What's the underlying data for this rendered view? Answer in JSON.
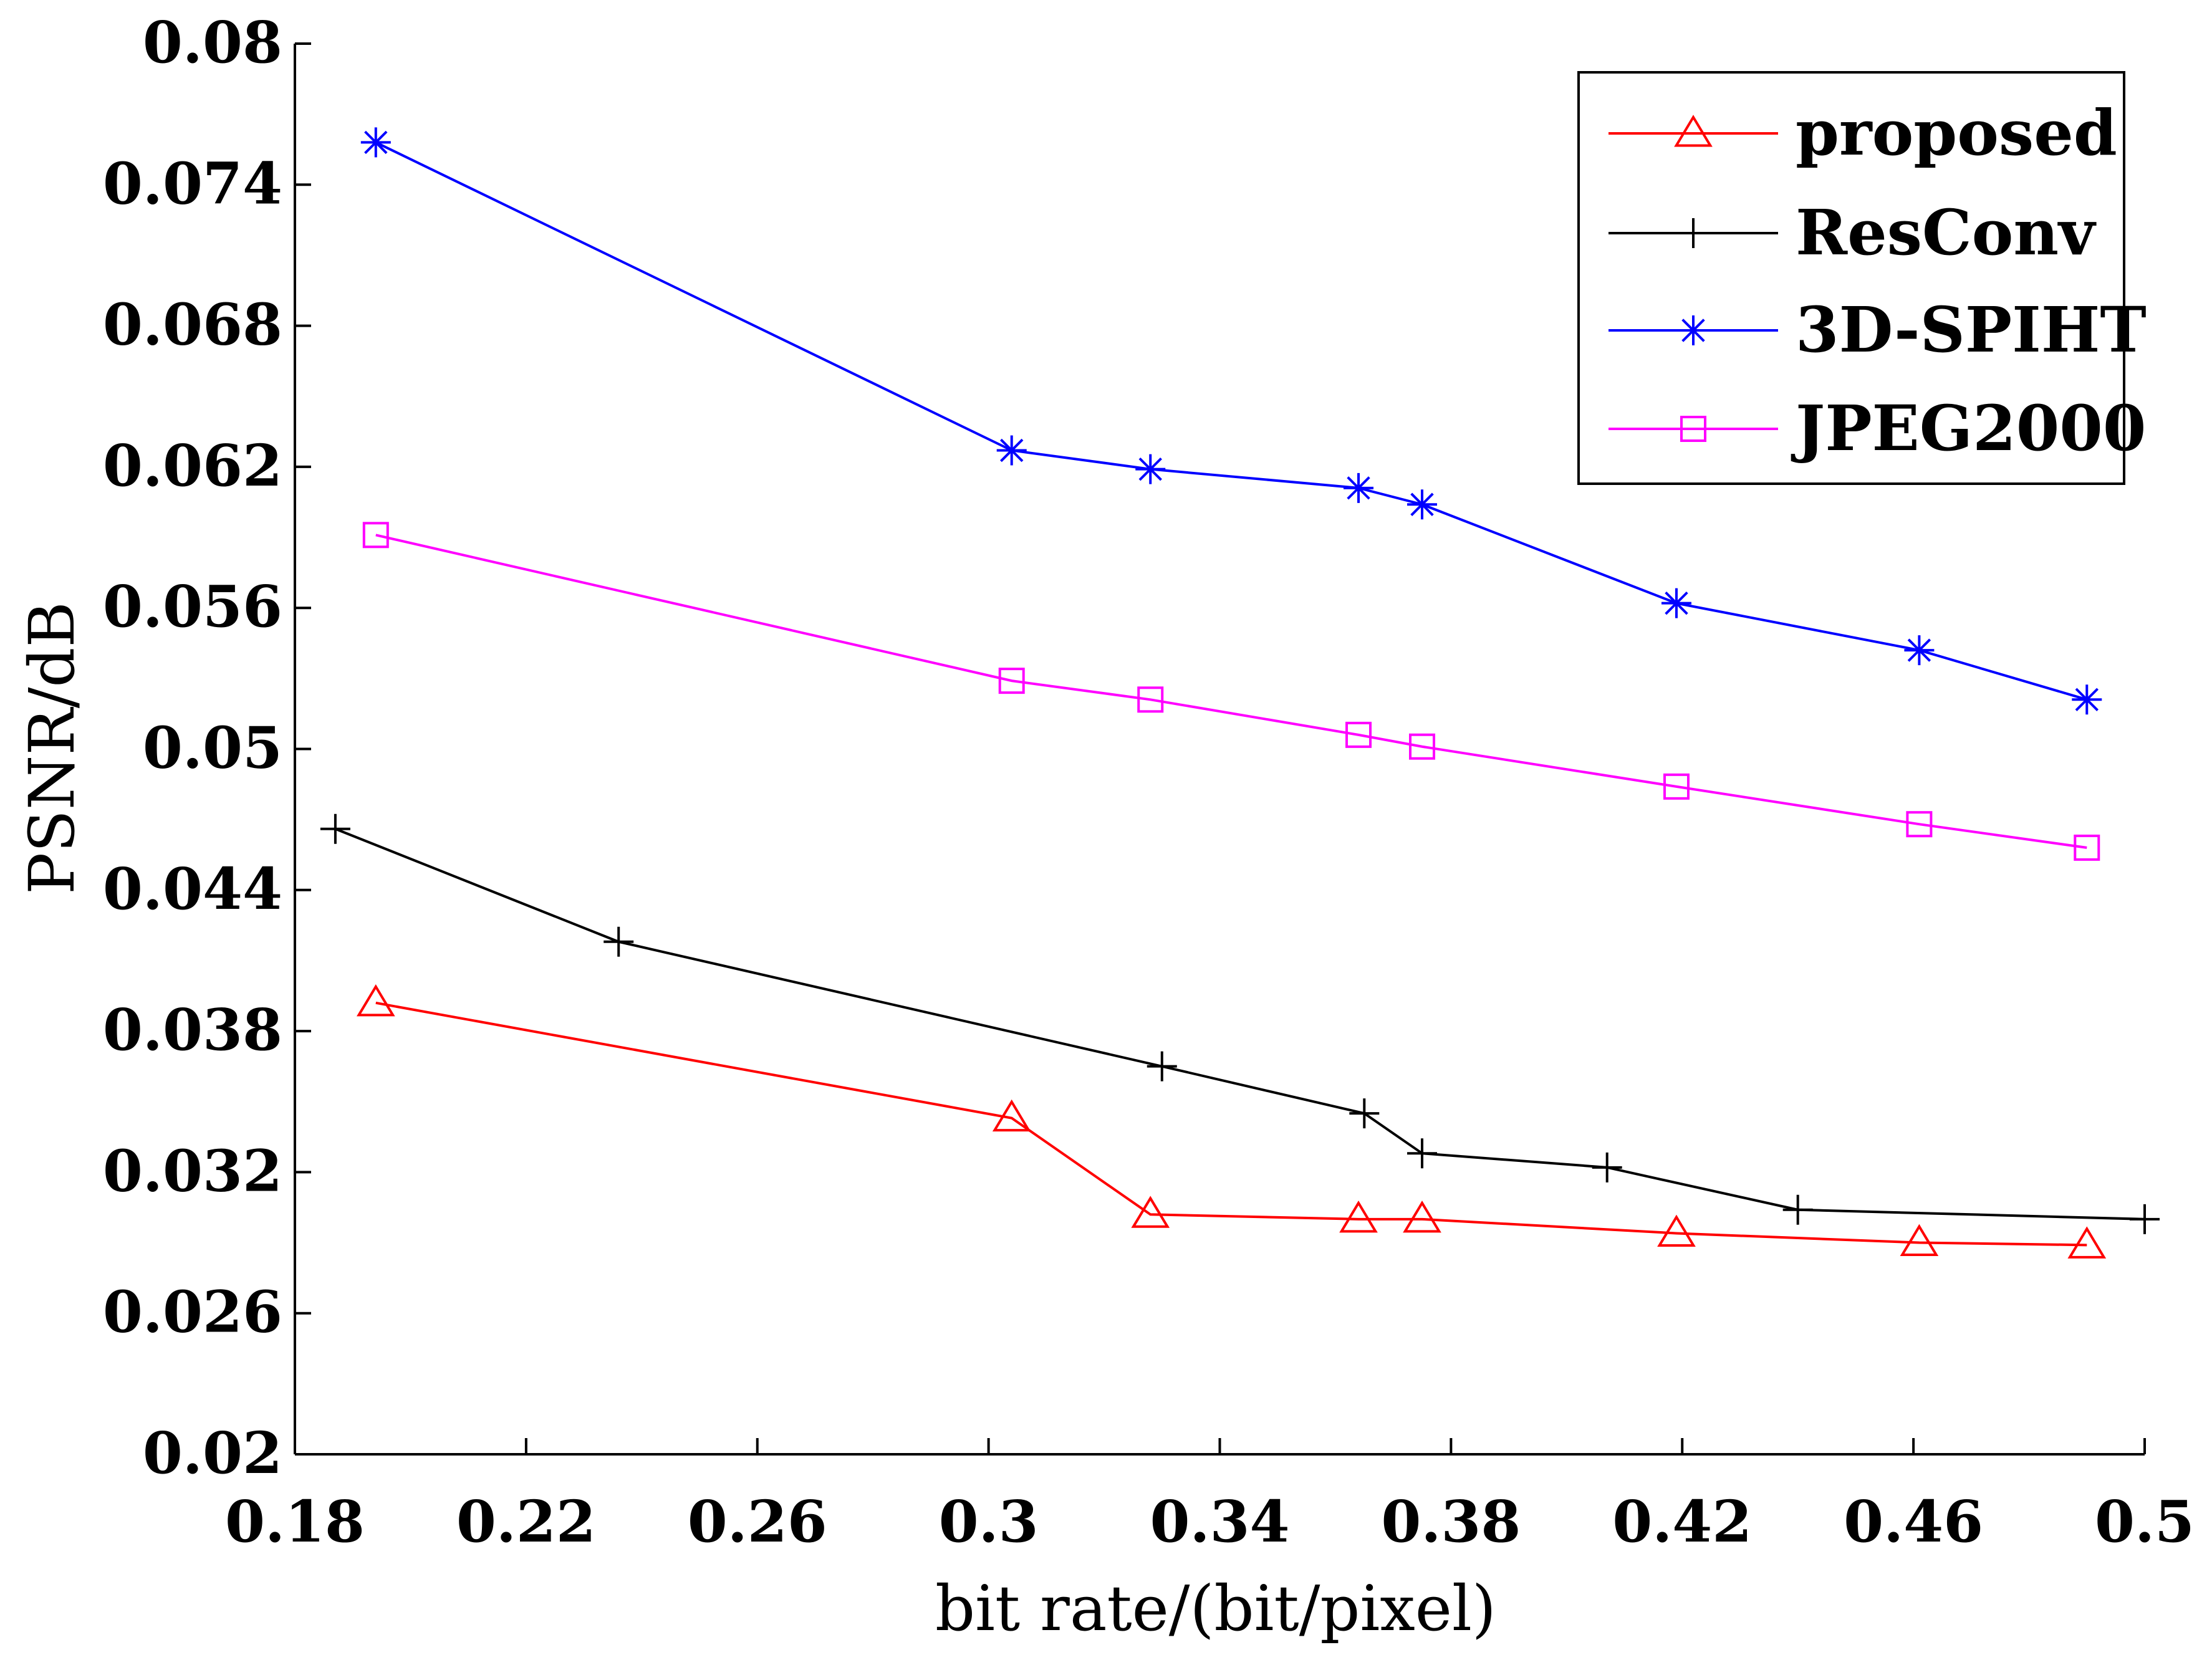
{
  "chart_data": {
    "type": "line",
    "title": "",
    "xlabel": "bit rate/(bit/pixel)",
    "ylabel": "PSNR/dB",
    "xlim": [
      0.18,
      0.5
    ],
    "ylim": [
      0.02,
      0.08
    ],
    "xticks": [
      0.18,
      0.22,
      0.26,
      0.3,
      0.34,
      0.38,
      0.42,
      0.46,
      0.5
    ],
    "xtick_labels": [
      "0.18",
      "0.22",
      "0.26",
      "0.3",
      "0.34",
      "0.38",
      "0.42",
      "0.46",
      "0.5"
    ],
    "yticks": [
      0.02,
      0.026,
      0.032,
      0.038,
      0.044,
      0.05,
      0.056,
      0.062,
      0.068,
      0.074,
      0.08
    ],
    "ytick_labels": [
      "0.02",
      "0.026",
      "0.032",
      "0.038",
      "0.044",
      "0.05",
      "0.056",
      "0.062",
      "0.068",
      "0.074",
      "0.08"
    ],
    "grid": false,
    "legend_position": "top-right",
    "series": [
      {
        "name": "proposed",
        "color": "#ff0000",
        "marker": "triangle",
        "x": [
          0.194,
          0.304,
          0.328,
          0.364,
          0.375,
          0.419,
          0.461,
          0.49
        ],
        "y": [
          0.0392,
          0.0343,
          0.0302,
          0.03,
          0.03,
          0.0294,
          0.029,
          0.0289
        ]
      },
      {
        "name": "ResConv",
        "color": "#000000",
        "marker": "plus",
        "x": [
          0.187,
          0.236,
          0.33,
          0.365,
          0.375,
          0.407,
          0.44,
          0.5
        ],
        "y": [
          0.0466,
          0.0418,
          0.0365,
          0.0345,
          0.0328,
          0.0322,
          0.0304,
          0.03
        ]
      },
      {
        "name": "3D-SPIHT",
        "color": "#0000ff",
        "marker": "asterisk",
        "x": [
          0.194,
          0.304,
          0.328,
          0.364,
          0.375,
          0.419,
          0.461,
          0.49
        ],
        "y": [
          0.0758,
          0.0627,
          0.0619,
          0.0611,
          0.0604,
          0.0562,
          0.0542,
          0.0521
        ]
      },
      {
        "name": "JPEG2000",
        "color": "#ff00ff",
        "marker": "square",
        "x": [
          0.194,
          0.304,
          0.328,
          0.364,
          0.375,
          0.419,
          0.461,
          0.49
        ],
        "y": [
          0.0591,
          0.0529,
          0.0521,
          0.0506,
          0.0501,
          0.0484,
          0.0468,
          0.0458
        ]
      }
    ]
  }
}
